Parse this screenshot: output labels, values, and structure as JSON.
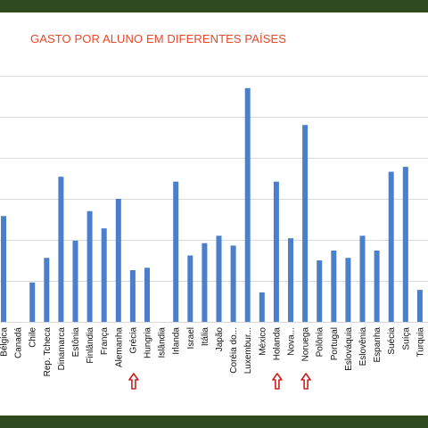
{
  "colors": {
    "band": "#2e4a1e",
    "title": "#e8472a",
    "bar": "#4a7fcb",
    "grid": "#d9d9d9",
    "arrow": "#cc1f1f"
  },
  "chart_data": {
    "type": "bar",
    "title": "GASTO POR ALUNO EM DIFERENTES PAÍSES",
    "xlabel": "",
    "ylabel": "",
    "ylim": [
      0,
      10
    ],
    "grid": true,
    "legend": "none",
    "categories": [
      "Bélgica",
      "Canadá",
      "Chile",
      "Rep. Tcheca",
      "Dinamarca",
      "Estônia",
      "Finlândia",
      "França",
      "Alemanha",
      "Grécia",
      "Hungria",
      "Islândia",
      "Irlanda",
      "Israel",
      "Itália",
      "Japão",
      "Coréia do...",
      "Luxembur...",
      "México",
      "Holanda",
      "Nova...",
      "Noruega",
      "Polônia",
      "Portugal",
      "Eslováquia",
      "Eslovênia",
      "Espanha",
      "Suécia",
      "Suíça",
      "Turquia"
    ],
    "series": [
      {
        "values": [
          4.3,
          0,
          1.6,
          2.6,
          5.9,
          3.3,
          4.5,
          3.8,
          5.0,
          2.1,
          2.2,
          0,
          5.7,
          2.7,
          3.2,
          3.5,
          3.1,
          9.5,
          1.2,
          5.7,
          3.4,
          8.0,
          2.5,
          2.9,
          2.6,
          3.5,
          2.9,
          6.1,
          6.3,
          1.3
        ]
      }
    ],
    "highlighted": [
      "Grécia",
      "Holanda",
      "Noruega"
    ]
  }
}
